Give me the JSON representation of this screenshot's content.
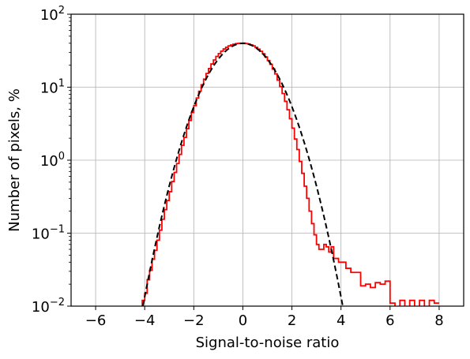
{
  "chart_data": {
    "type": "line",
    "title": "",
    "xlabel": "Signal-to-noise ratio",
    "ylabel": "Number of pixels, %",
    "xlim": [
      -7,
      9
    ],
    "ylim": [
      0.01,
      100
    ],
    "yscale": "log",
    "grid": true,
    "legend": "none",
    "x_ticks": [
      -6,
      -4,
      -2,
      0,
      2,
      4,
      6,
      8
    ],
    "x_tick_labels": [
      "−6",
      "−4",
      "−2",
      "0",
      "2",
      "4",
      "6",
      "8"
    ],
    "y_ticks": [
      0.01,
      0.1,
      1,
      10,
      100
    ],
    "y_tick_labels": [
      {
        "base": "10",
        "exp": "−2"
      },
      {
        "base": "10",
        "exp": "−1"
      },
      {
        "base": "10",
        "exp": "0"
      },
      {
        "base": "10",
        "exp": "1"
      },
      {
        "base": "10",
        "exp": "2"
      }
    ],
    "series": [
      {
        "style": "step",
        "color": "#ff0000",
        "line": "solid",
        "x": [
          -4.1,
          -4.0,
          -3.9,
          -3.8,
          -3.7,
          -3.6,
          -3.5,
          -3.4,
          -3.3,
          -3.2,
          -3.1,
          -3.0,
          -2.9,
          -2.8,
          -2.7,
          -2.6,
          -2.5,
          -2.4,
          -2.3,
          -2.2,
          -2.1,
          -2.0,
          -1.9,
          -1.8,
          -1.7,
          -1.6,
          -1.5,
          -1.4,
          -1.3,
          -1.2,
          -1.1,
          -1.0,
          -0.9,
          -0.8,
          -0.7,
          -0.6,
          -0.5,
          -0.4,
          -0.3,
          -0.2,
          -0.1,
          0.0,
          0.1,
          0.2,
          0.3,
          0.4,
          0.5,
          0.6,
          0.7,
          0.8,
          0.9,
          1.0,
          1.1,
          1.2,
          1.3,
          1.4,
          1.5,
          1.6,
          1.7,
          1.8,
          1.9,
          2.0,
          2.1,
          2.2,
          2.3,
          2.4,
          2.5,
          2.6,
          2.7,
          2.8,
          2.9,
          3.0,
          3.1,
          3.2,
          3.3,
          3.4,
          3.5,
          3.6,
          3.7,
          3.8,
          3.9,
          4.0,
          4.2,
          4.4,
          4.6,
          4.8,
          5.0,
          5.2,
          5.4,
          5.6,
          5.8,
          6.0,
          6.2,
          6.4,
          6.6,
          6.8,
          7.0,
          7.2,
          7.4,
          7.6,
          7.8
        ],
        "values": [
          0.012,
          0.015,
          0.023,
          0.031,
          0.044,
          0.058,
          0.08,
          0.11,
          0.155,
          0.21,
          0.28,
          0.37,
          0.51,
          0.68,
          0.9,
          1.2,
          1.6,
          2.05,
          2.7,
          3.5,
          4.5,
          5.6,
          7.1,
          8.8,
          10.8,
          12.9,
          15.4,
          18.0,
          20.8,
          23.6,
          26.4,
          28.9,
          31.2,
          33.4,
          35.2,
          36.8,
          37.9,
          38.8,
          39.5,
          39.9,
          40.0,
          40.1,
          39.6,
          39.0,
          38.0,
          36.8,
          35.1,
          33.2,
          31.0,
          28.7,
          26.0,
          23.2,
          20.6,
          17.7,
          15.2,
          12.5,
          10.2,
          8.2,
          6.4,
          4.9,
          3.7,
          2.75,
          1.95,
          1.4,
          0.96,
          0.66,
          0.44,
          0.3,
          0.2,
          0.135,
          0.095,
          0.07,
          0.06,
          0.06,
          0.07,
          0.065,
          0.055,
          0.065,
          0.045,
          0.045,
          0.04,
          0.04,
          0.033,
          0.029,
          0.029,
          0.019,
          0.02,
          0.018,
          0.021,
          0.02,
          0.022,
          0.011,
          0.009,
          0.012,
          0.0085,
          0.012,
          0.0075,
          0.012,
          0.0085,
          0.012,
          0.011
        ]
      },
      {
        "style": "line",
        "color": "#000000",
        "line": "dashed",
        "function": "gaussian",
        "mean": 0,
        "sigma": 1,
        "x_range": [
          -4.2,
          4.2
        ]
      }
    ]
  }
}
